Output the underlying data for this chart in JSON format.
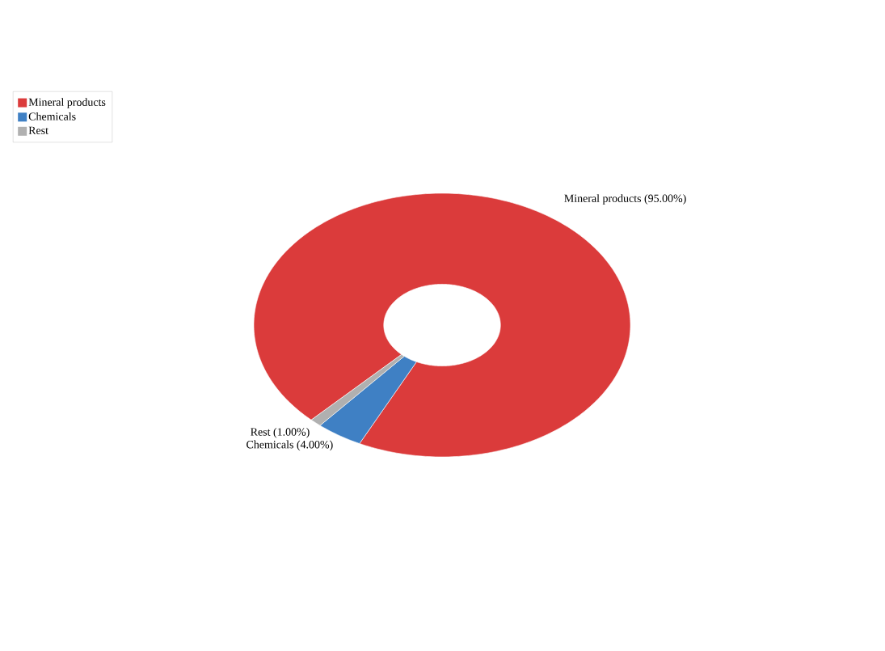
{
  "chart_data": {
    "type": "donut",
    "categories": [
      "Mineral products",
      "Chemicals",
      "Rest"
    ],
    "values": [
      95,
      4,
      1
    ],
    "colors": [
      "#db3b3b",
      "#3f80c4",
      "#b0b0b0"
    ],
    "value_labels": [
      "Mineral products (95.00%)",
      "Chemicals (4.00%)",
      "Rest (1.00%)"
    ],
    "legend": "top left"
  }
}
